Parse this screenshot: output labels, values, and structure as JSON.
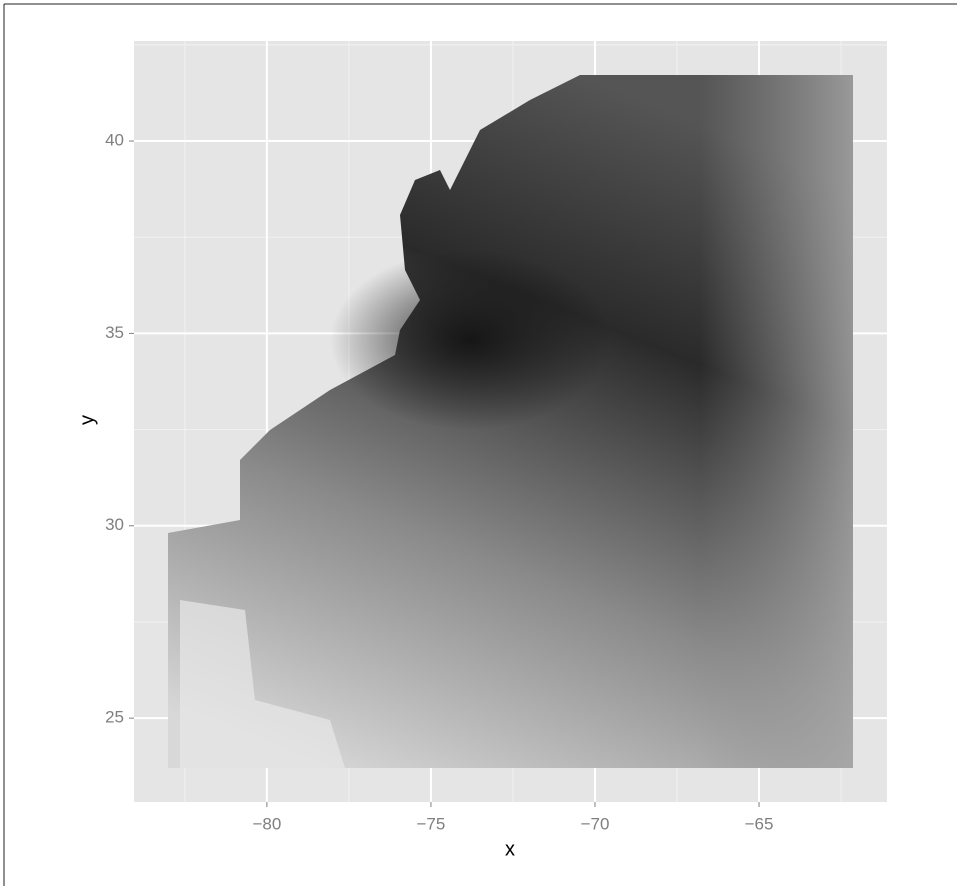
{
  "chart_data": {
    "type": "quiver",
    "xlabel": "x",
    "ylabel": "y",
    "xlim": [
      -84.05,
      -61.1
    ],
    "ylim": [
      22.82,
      42.6
    ],
    "xticks": [
      {
        "value": -80,
        "label": "−80"
      },
      {
        "value": -75,
        "label": "−75"
      },
      {
        "value": -70,
        "label": "−70"
      },
      {
        "value": -65,
        "label": "−65"
      }
    ],
    "yticks": [
      25,
      30,
      35,
      40
    ],
    "grid": true,
    "minor_grid": true
  }
}
